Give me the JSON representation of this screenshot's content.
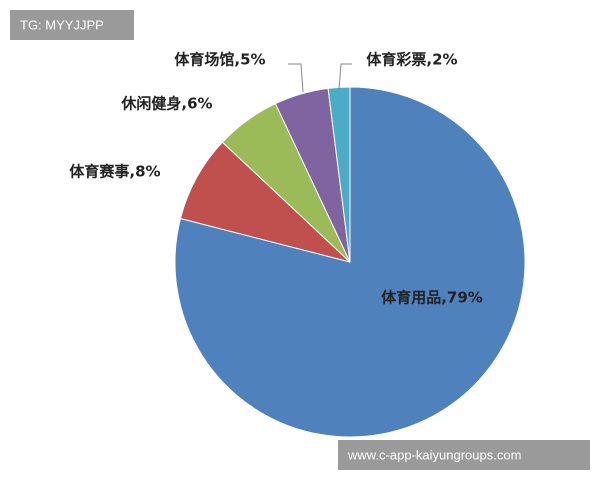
{
  "chart_data": {
    "type": "pie",
    "values": [
      79,
      8,
      6,
      5,
      2
    ],
    "value_labels": [
      "体育用品,79%",
      "体育赛事,8%",
      "休闲健身,6%",
      "体育场馆,5%",
      "体育彩票,2%"
    ],
    "colors": [
      "#4f81bd",
      "#c0504d",
      "#9bbb59",
      "#8064a2",
      "#4bacc6"
    ]
  },
  "watermarks": {
    "top": "TG: MYYJJPP",
    "bottom": "www.c-app-kaiyungroups.com"
  }
}
